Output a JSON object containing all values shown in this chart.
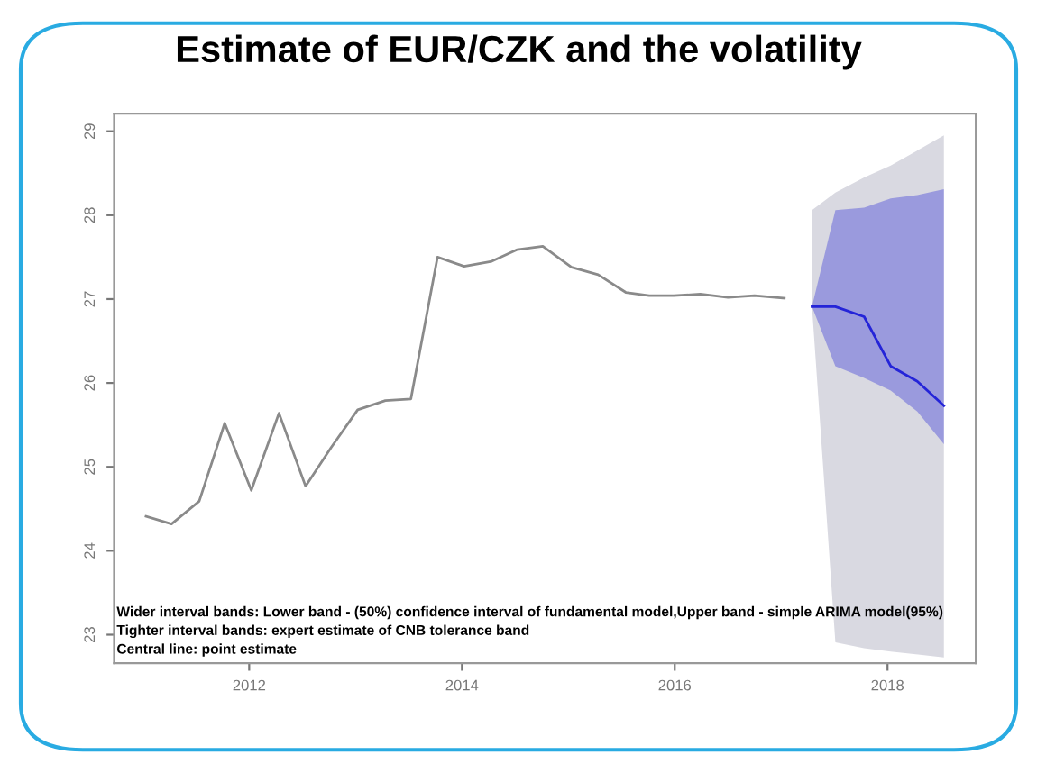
{
  "chart_data": {
    "type": "line",
    "title": "Estimate of EUR/CZK and the volatility",
    "xlim": [
      2010.73,
      2018.83
    ],
    "ylim": [
      22.66,
      29.21
    ],
    "xticks": [
      2012,
      2014,
      2016,
      2018
    ],
    "yticks": [
      23,
      24,
      25,
      26,
      27,
      28,
      29
    ],
    "grid": false,
    "legend": false,
    "marker": "none",
    "line_style": "solid",
    "series": [
      {
        "color": "#d9d9e1",
        "x": [
          2017.29,
          2017.51,
          2017.78,
          2018.03,
          2018.53
        ],
        "values": [
          null,
          null,
          null,
          null,
          null
        ],
        "lower": [
          26.91,
          22.91,
          22.84,
          22.8,
          22.73
        ],
        "upper": [
          28.06,
          28.27,
          28.45,
          28.59,
          28.95
        ]
      },
      {
        "color": "#8a8a8a",
        "x": [
          2011.03,
          2011.27,
          2011.53,
          2011.77,
          2012.02,
          2012.28,
          2012.53,
          2012.77,
          2013.02,
          2013.28,
          2013.52,
          2013.77,
          2014.02,
          2014.28,
          2014.52,
          2014.76,
          2015.03,
          2015.28,
          2015.54,
          2015.76,
          2015.99,
          2016.24,
          2016.5,
          2016.75,
          2017.03
        ],
        "values": [
          24.41,
          24.32,
          24.59,
          25.52,
          24.72,
          25.64,
          24.77,
          25.23,
          25.68,
          25.79,
          25.81,
          27.5,
          27.39,
          27.45,
          27.59,
          27.63,
          27.38,
          27.29,
          27.08,
          27.04,
          27.04,
          27.06,
          27.02,
          27.04,
          27.01
        ]
      },
      {
        "color": "#2424d8",
        "x": [
          2017.29,
          2017.51,
          2017.78,
          2018.03,
          2018.28,
          2018.53
        ],
        "values": [
          26.91,
          26.91,
          26.79,
          26.2,
          26.02,
          25.73
        ],
        "lower": [
          26.91,
          26.2,
          26.06,
          25.91,
          25.66,
          25.27
        ],
        "upper": [
          26.91,
          28.06,
          28.09,
          28.2,
          28.24,
          28.31
        ]
      }
    ],
    "annotations": [
      "Wider interval bands: Lower band - (50%) confidence interval of fundamental model,Upper band - simple ARIMA model(95%)",
      "Tighter interval bands: expert estimate of CNB tolerance band",
      "Central line: point estimate"
    ]
  }
}
